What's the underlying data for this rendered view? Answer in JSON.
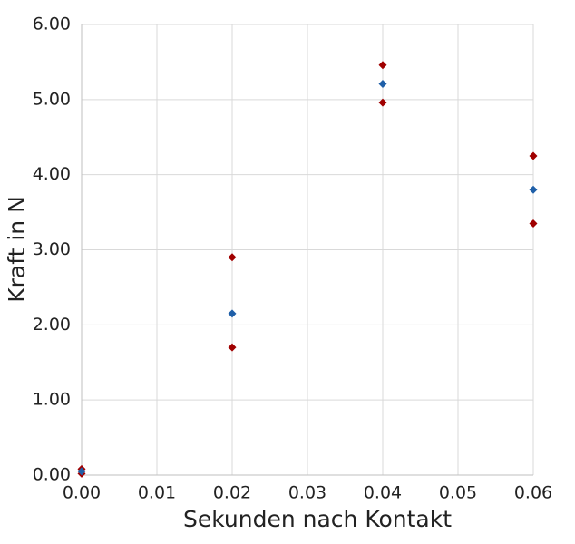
{
  "chart_data": {
    "type": "scatter",
    "x_label": "Sekunden nach Kontakt",
    "y_label": "Kraft in N",
    "xlim": [
      0,
      0.06
    ],
    "ylim": [
      0,
      6
    ],
    "xticks": [
      {
        "value": 0,
        "label": "0.00"
      },
      {
        "value": 0.01,
        "label": "0.01"
      },
      {
        "value": 0.02,
        "label": "0.02"
      },
      {
        "value": 0.03,
        "label": "0.03"
      },
      {
        "value": 0.04,
        "label": "0.04"
      },
      {
        "value": 0.05,
        "label": "0.05"
      },
      {
        "value": 0.06,
        "label": "0.06"
      }
    ],
    "yticks": [
      {
        "value": 0,
        "label": "0.00"
      },
      {
        "value": 1,
        "label": "1.00"
      },
      {
        "value": 2,
        "label": "2.00"
      },
      {
        "value": 3,
        "label": "3.00"
      },
      {
        "value": 4,
        "label": "4.00"
      },
      {
        "value": 5,
        "label": "5.00"
      },
      {
        "value": 6,
        "label": "6.00"
      }
    ],
    "grid": true,
    "series": [
      {
        "color": "#a00000",
        "x": [
          0,
          0.02,
          0.04,
          0.06
        ],
        "values": [
          0.08,
          2.9,
          5.46,
          4.25
        ]
      },
      {
        "color": "#a00000",
        "x": [
          0,
          0.02,
          0.04,
          0.06
        ],
        "values": [
          0.02,
          1.7,
          4.96,
          3.35
        ]
      },
      {
        "color": "#1f5fa8",
        "x": [
          0,
          0.02,
          0.04,
          0.06
        ],
        "values": [
          0.05,
          2.15,
          5.21,
          3.8
        ]
      }
    ]
  }
}
